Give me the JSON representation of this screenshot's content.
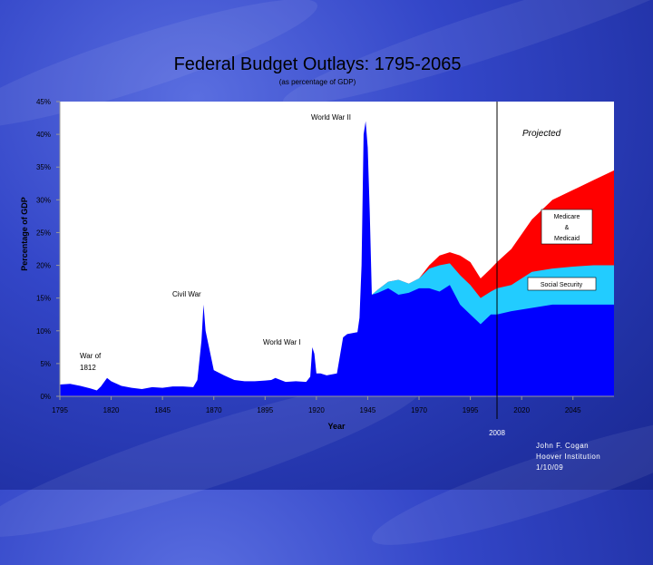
{
  "chart_data": {
    "type": "area",
    "title": "Federal Budget Outlays: 1795-2065",
    "subtitle": "(as percentage of GDP)",
    "xlabel": "Year",
    "ylabel": "Percentage of GDP",
    "xlim": [
      1795,
      2065
    ],
    "ylim": [
      0,
      45
    ],
    "x_ticks": [
      "1795",
      "1820",
      "1845",
      "1870",
      "1895",
      "1920",
      "1945",
      "1970",
      "1995",
      "2020",
      "2045"
    ],
    "y_ticks": [
      "0%",
      "5%",
      "10%",
      "15%",
      "20%",
      "25%",
      "30%",
      "35%",
      "40%",
      "45%"
    ],
    "grid": false,
    "colors": {
      "total": "#0000ff",
      "social_security": "#22ccff",
      "medicare_medicaid": "#ff0000"
    },
    "marker": {
      "year": 2008,
      "label": "2008"
    },
    "series": [
      {
        "name": "",
        "x": [
          1795,
          1800,
          1805,
          1810,
          1813,
          1815,
          1818,
          1820,
          1825,
          1830,
          1835,
          1840,
          1845,
          1850,
          1855,
          1860,
          1862,
          1864,
          1865,
          1866,
          1870,
          1875,
          1880,
          1885,
          1890,
          1895,
          1898,
          1900,
          1905,
          1910,
          1915,
          1917,
          1918,
          1919,
          1920,
          1922,
          1925,
          1930,
          1933,
          1935,
          1940,
          1941,
          1942,
          1943,
          1944,
          1945,
          1946,
          1947,
          1950,
          1955,
          1960,
          1965,
          1970,
          1975,
          1980,
          1985,
          1990,
          1995,
          2000,
          2005,
          2008,
          2015,
          2025,
          2035,
          2045,
          2055,
          2065
        ],
        "values": [
          1.8,
          1.9,
          1.6,
          1.2,
          0.9,
          1.5,
          2.8,
          2.3,
          1.6,
          1.3,
          1.1,
          1.4,
          1.3,
          1.5,
          1.5,
          1.4,
          2.5,
          8.5,
          14.0,
          10.0,
          4.0,
          3.2,
          2.5,
          2.3,
          2.3,
          2.4,
          2.5,
          2.8,
          2.2,
          2.3,
          2.2,
          3.0,
          7.5,
          6.5,
          3.5,
          3.5,
          3.2,
          3.5,
          9.0,
          9.5,
          9.8,
          12.0,
          20.0,
          40.0,
          42.0,
          38.0,
          28.0,
          15.5,
          15.8,
          16.5,
          15.5,
          15.8,
          16.5,
          16.5,
          16.0,
          17.0,
          14.0,
          12.5,
          11.0,
          12.5,
          12.5,
          13.0,
          13.5,
          14.0,
          14.0,
          14.0,
          14.0
        ]
      },
      {
        "name": "Social Security",
        "x": [
          1947,
          1950,
          1955,
          1960,
          1965,
          1970,
          1975,
          1980,
          1985,
          1990,
          1995,
          2000,
          2005,
          2008,
          2015,
          2025,
          2035,
          2045,
          2055,
          2065
        ],
        "values": [
          15.5,
          16.3,
          17.5,
          17.8,
          17.2,
          18.0,
          19.5,
          20.0,
          20.3,
          18.5,
          17.0,
          15.0,
          16.0,
          16.5,
          17.0,
          19.0,
          19.5,
          19.8,
          20.0,
          20.0
        ]
      },
      {
        "name": "Medicare & Medicaid",
        "x": [
          1947,
          1950,
          1955,
          1960,
          1965,
          1970,
          1975,
          1980,
          1985,
          1990,
          1995,
          2000,
          2005,
          2008,
          2015,
          2025,
          2035,
          2045,
          2055,
          2065
        ],
        "values": [
          15.5,
          16.3,
          17.5,
          17.8,
          17.2,
          18.0,
          20.0,
          21.5,
          22.0,
          21.5,
          20.5,
          18.0,
          19.5,
          20.5,
          22.5,
          27.0,
          30.0,
          31.5,
          33.0,
          34.5
        ]
      }
    ],
    "annotations": {
      "war_1812_line1": "War of",
      "war_1812_line2": "1812",
      "civil_war": "Civil War",
      "ww1": "World War I",
      "ww2": "World War II",
      "projected": "Projected",
      "medicare_line1": "Medicare",
      "medicare_line2": "&",
      "medicare_line3": "Medicaid",
      "social_security": "Social Security"
    }
  },
  "footer": {
    "line1": "John F. Cogan",
    "line2": "Hoover Institution",
    "line3": "1/10/09"
  }
}
